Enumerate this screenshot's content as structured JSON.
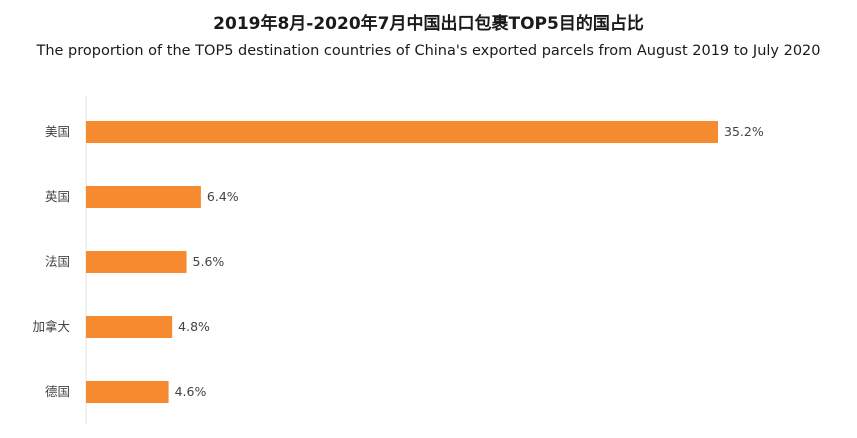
{
  "title": "2019年8月-2020年7月中国出口包裹TOP5目的国占比",
  "subtitle": "The proportion of the TOP5 destination countries of China's exported parcels from August 2019 to July 2020",
  "colors": {
    "bar": "#f58b2e",
    "axis": "#e0e0e0"
  },
  "chart_data": {
    "type": "bar",
    "orientation": "horizontal",
    "categories": [
      "美国",
      "英国",
      "法国",
      "加拿大",
      "德国"
    ],
    "values": [
      35.2,
      6.4,
      5.6,
      4.8,
      4.6
    ],
    "value_labels": [
      "35.2%",
      "6.4%",
      "5.6%",
      "4.8%",
      "4.6%"
    ],
    "unit": "%",
    "xlim": [
      0,
      35.2
    ],
    "grid": false
  }
}
